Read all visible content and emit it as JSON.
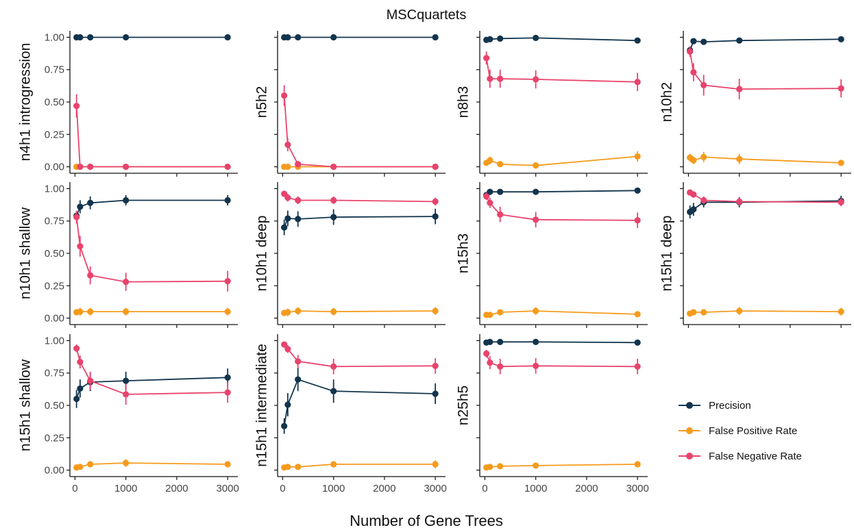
{
  "title": "MSCquartets",
  "xlabel": "Number of Gene Trees",
  "colors": {
    "Precision": "#12344d",
    "False Positive Rate": "#f59b1c",
    "False Negative Rate": "#e8436d"
  },
  "chart_data": {
    "type": "line",
    "title": "MSCquartets",
    "xlabel": "Number of Gene Trees",
    "xlim": [
      -100,
      3200
    ],
    "ylim": [
      -0.05,
      1.05
    ],
    "x_ticks": [
      0,
      1000,
      2000,
      3000
    ],
    "y_ticks": [
      0.0,
      0.25,
      0.5,
      0.75,
      1.0
    ],
    "y_tick_labels": [
      "0.00",
      "0.25",
      "0.50",
      "0.75",
      "1.00"
    ],
    "legend": {
      "placement": "right",
      "entries": [
        "Precision",
        "False Positive Rate",
        "False Negative Rate"
      ]
    },
    "x": [
      30,
      100,
      300,
      1000,
      3000
    ],
    "panels": [
      {
        "label": "n4h1 introgression",
        "series": [
          {
            "name": "Precision",
            "values": [
              1.0,
              1.0,
              1.0,
              1.0,
              1.0
            ],
            "err": [
              0,
              0,
              0,
              0,
              0
            ]
          },
          {
            "name": "False Positive Rate",
            "values": [
              0.0,
              0.0,
              0.0,
              0.0,
              0.0
            ],
            "err": [
              0,
              0,
              0,
              0,
              0
            ]
          },
          {
            "name": "False Negative Rate",
            "values": [
              0.47,
              0.0,
              0.0,
              0.0,
              0.0
            ],
            "err": [
              0.09,
              0,
              0,
              0,
              0
            ]
          }
        ]
      },
      {
        "label": "n5h2",
        "series": [
          {
            "name": "Precision",
            "values": [
              1.0,
              1.0,
              1.0,
              1.0,
              1.0
            ],
            "err": [
              0,
              0,
              0,
              0,
              0
            ]
          },
          {
            "name": "False Positive Rate",
            "values": [
              0.0,
              0.0,
              0.0,
              0.0,
              0.0
            ],
            "err": [
              0,
              0,
              0,
              0,
              0
            ]
          },
          {
            "name": "False Negative Rate",
            "values": [
              0.55,
              0.17,
              0.02,
              0.0,
              0.0
            ],
            "err": [
              0.08,
              0.05,
              0.01,
              0,
              0
            ]
          }
        ]
      },
      {
        "label": "n8h3",
        "series": [
          {
            "name": "Precision",
            "values": [
              0.98,
              0.985,
              0.99,
              0.995,
              0.975
            ],
            "err": [
              0.01,
              0.01,
              0.01,
              0.01,
              0.01
            ]
          },
          {
            "name": "False Positive Rate",
            "values": [
              0.03,
              0.05,
              0.02,
              0.01,
              0.08
            ],
            "err": [
              0.02,
              0.03,
              0.02,
              0.01,
              0.04
            ]
          },
          {
            "name": "False Negative Rate",
            "values": [
              0.84,
              0.68,
              0.68,
              0.675,
              0.655
            ],
            "err": [
              0.05,
              0.07,
              0.07,
              0.07,
              0.07
            ]
          }
        ]
      },
      {
        "label": "n10h2",
        "series": [
          {
            "name": "Precision",
            "values": [
              0.9,
              0.97,
              0.965,
              0.975,
              0.985
            ],
            "err": [
              0.03,
              0.02,
              0.02,
              0.02,
              0.01
            ]
          },
          {
            "name": "False Positive Rate",
            "values": [
              0.07,
              0.05,
              0.075,
              0.06,
              0.03
            ],
            "err": [
              0.03,
              0.03,
              0.04,
              0.04,
              0.02
            ]
          },
          {
            "name": "False Negative Rate",
            "values": [
              0.89,
              0.73,
              0.63,
              0.6,
              0.605
            ],
            "err": [
              0.04,
              0.07,
              0.08,
              0.08,
              0.07
            ]
          }
        ]
      },
      {
        "label": "n10h1 shallow",
        "series": [
          {
            "name": "Precision",
            "values": [
              0.79,
              0.86,
              0.89,
              0.91,
              0.91
            ],
            "err": [
              0.03,
              0.05,
              0.05,
              0.04,
              0.04
            ]
          },
          {
            "name": "False Positive Rate",
            "values": [
              0.045,
              0.05,
              0.05,
              0.05,
              0.05
            ],
            "err": [
              0.02,
              0.03,
              0.03,
              0.03,
              0.03
            ]
          },
          {
            "name": "False Negative Rate",
            "values": [
              0.78,
              0.555,
              0.33,
              0.28,
              0.285
            ],
            "err": [
              0.05,
              0.08,
              0.07,
              0.07,
              0.08
            ]
          }
        ]
      },
      {
        "label": "n10h1 deep",
        "series": [
          {
            "name": "Precision",
            "values": [
              0.7,
              0.77,
              0.765,
              0.78,
              0.785
            ],
            "err": [
              0.06,
              0.06,
              0.06,
              0.06,
              0.06
            ]
          },
          {
            "name": "False Positive Rate",
            "values": [
              0.04,
              0.045,
              0.055,
              0.05,
              0.055
            ],
            "err": [
              0.02,
              0.03,
              0.03,
              0.03,
              0.03
            ]
          },
          {
            "name": "False Negative Rate",
            "values": [
              0.96,
              0.93,
              0.91,
              0.91,
              0.9
            ],
            "err": [
              0.02,
              0.03,
              0.03,
              0.03,
              0.03
            ]
          }
        ]
      },
      {
        "label": "n15h3",
        "series": [
          {
            "name": "Precision",
            "values": [
              0.95,
              0.975,
              0.975,
              0.975,
              0.985
            ],
            "err": [
              0.02,
              0.01,
              0.01,
              0.01,
              0.01
            ]
          },
          {
            "name": "False Positive Rate",
            "values": [
              0.025,
              0.025,
              0.045,
              0.055,
              0.03
            ],
            "err": [
              0.01,
              0.01,
              0.02,
              0.03,
              0.02
            ]
          },
          {
            "name": "False Negative Rate",
            "values": [
              0.94,
              0.89,
              0.8,
              0.76,
              0.755
            ],
            "err": [
              0.03,
              0.04,
              0.06,
              0.06,
              0.06
            ]
          }
        ]
      },
      {
        "label": "n15h1 deep",
        "series": [
          {
            "name": "Precision",
            "values": [
              0.82,
              0.84,
              0.895,
              0.895,
              0.905
            ],
            "err": [
              0.05,
              0.05,
              0.04,
              0.04,
              0.04
            ]
          },
          {
            "name": "False Positive Rate",
            "values": [
              0.035,
              0.045,
              0.045,
              0.055,
              0.05
            ],
            "err": [
              0.02,
              0.02,
              0.02,
              0.03,
              0.03
            ]
          },
          {
            "name": "False Negative Rate",
            "values": [
              0.97,
              0.955,
              0.91,
              0.9,
              0.895
            ],
            "err": [
              0.02,
              0.02,
              0.03,
              0.03,
              0.03
            ]
          }
        ]
      },
      {
        "label": "n15h1 shallow",
        "series": [
          {
            "name": "Precision",
            "values": [
              0.55,
              0.63,
              0.68,
              0.69,
              0.715
            ],
            "err": [
              0.07,
              0.07,
              0.07,
              0.07,
              0.07
            ]
          },
          {
            "name": "False Positive Rate",
            "values": [
              0.02,
              0.025,
              0.045,
              0.055,
              0.045
            ],
            "err": [
              0.01,
              0.01,
              0.02,
              0.03,
              0.02
            ]
          },
          {
            "name": "False Negative Rate",
            "values": [
              0.94,
              0.835,
              0.69,
              0.585,
              0.6
            ],
            "err": [
              0.03,
              0.05,
              0.07,
              0.08,
              0.08
            ]
          }
        ]
      },
      {
        "label": "n15h1 intermediate",
        "series": [
          {
            "name": "Precision",
            "values": [
              0.34,
              0.505,
              0.7,
              0.61,
              0.59
            ],
            "err": [
              0.06,
              0.09,
              0.09,
              0.09,
              0.08
            ]
          },
          {
            "name": "False Positive Rate",
            "values": [
              0.02,
              0.025,
              0.025,
              0.045,
              0.045
            ],
            "err": [
              0.01,
              0.01,
              0.01,
              0.02,
              0.03
            ]
          },
          {
            "name": "False Negative Rate",
            "values": [
              0.97,
              0.935,
              0.84,
              0.8,
              0.805
            ],
            "err": [
              0.02,
              0.03,
              0.05,
              0.06,
              0.06
            ]
          }
        ]
      },
      {
        "label": "n25h5",
        "series": [
          {
            "name": "Precision",
            "values": [
              0.985,
              0.99,
              0.99,
              0.99,
              0.985
            ],
            "err": [
              0.01,
              0.01,
              0.01,
              0.01,
              0.01
            ]
          },
          {
            "name": "False Positive Rate",
            "values": [
              0.02,
              0.025,
              0.03,
              0.035,
              0.045
            ],
            "err": [
              0.01,
              0.01,
              0.01,
              0.02,
              0.02
            ]
          },
          {
            "name": "False Negative Rate",
            "values": [
              0.9,
              0.83,
              0.8,
              0.805,
              0.8
            ],
            "err": [
              0.03,
              0.05,
              0.06,
              0.06,
              0.06
            ]
          }
        ]
      }
    ]
  }
}
